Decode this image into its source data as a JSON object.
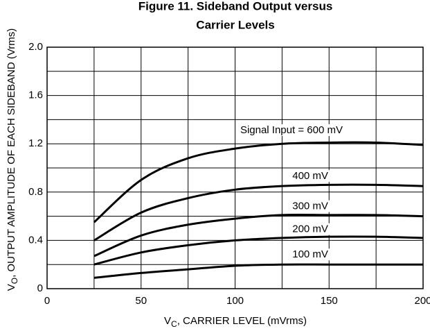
{
  "chart_data": {
    "type": "line",
    "title_lines": [
      "Figure 11. Sideband Output versus",
      "Carrier Levels"
    ],
    "x_label": {
      "symbol": "V",
      "sub": "C",
      "rest": ", CARRIER LEVEL (mVrms)"
    },
    "y_label": {
      "symbol": "V",
      "sub": "O",
      "rest": ", OUTPUT AMPLITUDE OF EACH SIDEBAND (Vrms)"
    },
    "x": [
      25,
      50,
      75,
      100,
      125,
      150,
      175,
      200
    ],
    "series": [
      {
        "name": "Signal Input = 600 mV",
        "color": "#000000",
        "values": [
          0.55,
          0.9,
          1.08,
          1.16,
          1.2,
          1.21,
          1.21,
          1.19
        ]
      },
      {
        "name": "400 mV",
        "color": "#000000",
        "values": [
          0.4,
          0.63,
          0.75,
          0.82,
          0.85,
          0.86,
          0.86,
          0.85
        ]
      },
      {
        "name": "300 mV",
        "color": "#000000",
        "values": [
          0.27,
          0.44,
          0.53,
          0.58,
          0.61,
          0.61,
          0.61,
          0.6
        ]
      },
      {
        "name": "200 mV",
        "color": "#000000",
        "values": [
          0.2,
          0.3,
          0.36,
          0.4,
          0.42,
          0.43,
          0.43,
          0.42
        ]
      },
      {
        "name": "100 mV",
        "color": "#000000",
        "values": [
          0.09,
          0.13,
          0.16,
          0.19,
          0.2,
          0.2,
          0.2,
          0.2
        ]
      }
    ],
    "xlim": [
      0,
      200
    ],
    "xticks": [
      0,
      50,
      100,
      150,
      200
    ],
    "xminor": [
      25,
      75,
      125,
      175
    ],
    "ylim": [
      0,
      2
    ],
    "yticks": [
      0,
      0.4,
      0.8,
      1.2,
      1.6,
      {
        "value": 2,
        "label": "2.0"
      }
    ],
    "yminor": [
      0.2,
      0.6,
      1,
      1.4,
      1.8
    ],
    "grid": true
  }
}
